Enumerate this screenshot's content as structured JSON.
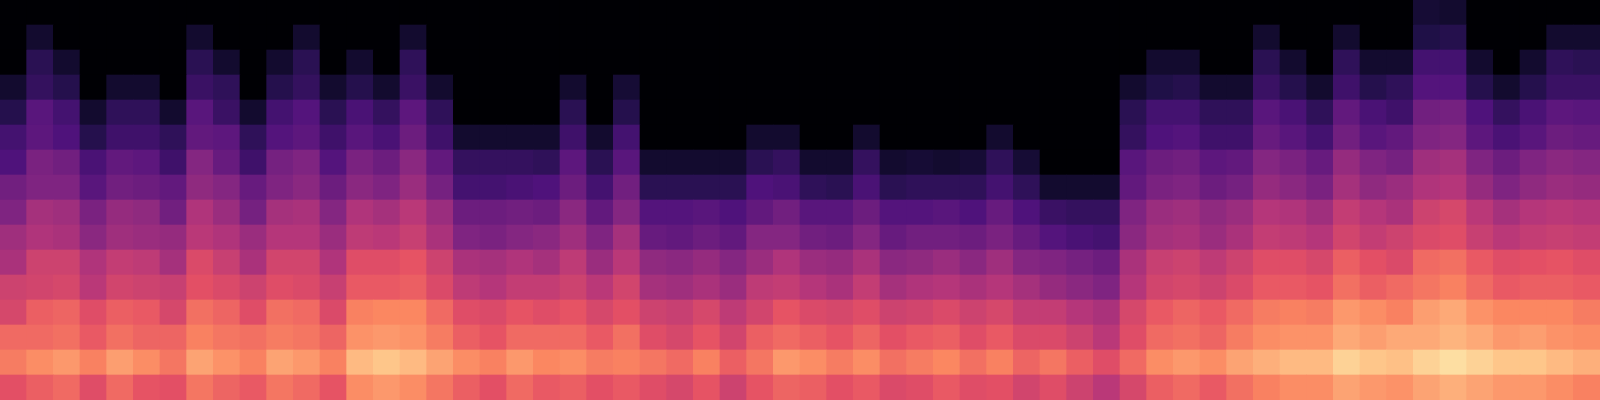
{
  "chart_data": {
    "type": "heatmap",
    "tick_labels": false,
    "grid": false,
    "color_range": [
      -80,
      0
    ],
    "cells": [
      [
        -30,
        -22,
        -25,
        -33,
        -35,
        -42,
        -44,
        -50,
        -53,
        -60,
        -62,
        -68,
        -73,
        -80,
        -80,
        -80
      ],
      [
        -27,
        -19,
        -25,
        -27,
        -34,
        -35,
        -41,
        -43,
        -50,
        -51,
        -57,
        -58,
        -65,
        -67,
        -73,
        -80
      ],
      [
        -25,
        -17,
        -24,
        -26,
        -33,
        -35,
        -42,
        -44,
        -50,
        -53,
        -60,
        -62,
        -68,
        -73,
        -80,
        -80
      ],
      [
        -31,
        -21,
        -28,
        -31,
        -39,
        -41,
        -48,
        -51,
        -58,
        -61,
        -68,
        -73,
        -80,
        -80,
        -80,
        -80
      ],
      [
        -25,
        -16,
        -24,
        -27,
        -34,
        -37,
        -44,
        -46,
        -53,
        -56,
        -63,
        -66,
        -73,
        -80,
        -80,
        -80
      ],
      [
        -29,
        -19,
        -26,
        -28,
        -35,
        -38,
        -45,
        -47,
        -54,
        -57,
        -63,
        -66,
        -73,
        -80,
        -80,
        -80
      ],
      [
        -30,
        -23,
        -26,
        -33,
        -36,
        -43,
        -46,
        -53,
        -56,
        -63,
        -66,
        -73,
        -80,
        -80,
        -80,
        -80
      ],
      [
        -23,
        -15,
        -21,
        -24,
        -30,
        -32,
        -39,
        -41,
        -47,
        -49,
        -56,
        -58,
        -64,
        -67,
        -73,
        -80
      ],
      [
        -26,
        -18,
        -23,
        -26,
        -32,
        -36,
        -41,
        -45,
        -49,
        -55,
        -57,
        -64,
        -66,
        -73,
        -80,
        -80
      ],
      [
        -28,
        -21,
        -24,
        -31,
        -35,
        -42,
        -45,
        -52,
        -55,
        -63,
        -66,
        -73,
        -80,
        -80,
        -80,
        -80
      ],
      [
        -23,
        -15,
        -22,
        -24,
        -31,
        -34,
        -40,
        -43,
        -50,
        -52,
        -59,
        -62,
        -68,
        -73,
        -80,
        -80
      ],
      [
        -25,
        -17,
        -23,
        -25,
        -32,
        -34,
        -40,
        -42,
        -48,
        -50,
        -57,
        -59,
        -65,
        -67,
        -73,
        -80
      ],
      [
        -29,
        -21,
        -26,
        -32,
        -36,
        -41,
        -45,
        -49,
        -54,
        -59,
        -63,
        -67,
        -73,
        -80,
        -80,
        -80
      ],
      [
        -19,
        -11,
        -18,
        -21,
        -28,
        -31,
        -38,
        -41,
        -48,
        -51,
        -58,
        -61,
        -68,
        -73,
        -80,
        -80
      ],
      [
        -17,
        -9,
        -17,
        -20,
        -28,
        -31,
        -39,
        -43,
        -50,
        -54,
        -61,
        -65,
        -73,
        -80,
        -80,
        -80
      ],
      [
        -19,
        -11,
        -18,
        -20,
        -27,
        -29,
        -36,
        -39,
        -45,
        -48,
        -54,
        -57,
        -64,
        -66,
        -73,
        -80
      ],
      [
        -23,
        -15,
        -22,
        -25,
        -32,
        -35,
        -42,
        -45,
        -52,
        -56,
        -63,
        -66,
        -73,
        -80,
        -80,
        -80
      ],
      [
        -27,
        -19,
        -27,
        -31,
        -38,
        -42,
        -50,
        -54,
        -62,
        -65,
        -73,
        -80,
        -80,
        -80,
        -80,
        -80
      ],
      [
        -30,
        -21,
        -29,
        -32,
        -40,
        -43,
        -51,
        -54,
        -62,
        -65,
        -73,
        -80,
        -80,
        -80,
        -80,
        -80
      ],
      [
        -25,
        -17,
        -25,
        -29,
        -37,
        -41,
        -49,
        -53,
        -61,
        -65,
        -73,
        -80,
        -80,
        -80,
        -80,
        -80
      ],
      [
        -28,
        -20,
        -25,
        -31,
        -37,
        -43,
        -48,
        -54,
        -60,
        -66,
        -73,
        -80,
        -80,
        -80,
        -80,
        -80
      ],
      [
        -27,
        -19,
        -25,
        -29,
        -35,
        -38,
        -44,
        -48,
        -54,
        -57,
        -63,
        -67,
        -73,
        -80,
        -80,
        -80
      ],
      [
        -30,
        -22,
        -28,
        -33,
        -39,
        -45,
        -50,
        -56,
        -62,
        -67,
        -73,
        -80,
        -80,
        -80,
        -80,
        -80
      ],
      [
        -28,
        -21,
        -24,
        -30,
        -34,
        -39,
        -43,
        -49,
        -53,
        -58,
        -62,
        -68,
        -72,
        -80,
        -80,
        -80
      ],
      [
        -31,
        -23,
        -31,
        -35,
        -43,
        -47,
        -55,
        -59,
        -67,
        -73,
        -80,
        -80,
        -80,
        -80,
        -80,
        -80
      ],
      [
        -33,
        -25,
        -33,
        -36,
        -44,
        -48,
        -56,
        -59,
        -67,
        -73,
        -80,
        -80,
        -80,
        -80,
        -80,
        -80
      ],
      [
        -29,
        -21,
        -29,
        -33,
        -42,
        -46,
        -54,
        -58,
        -67,
        -73,
        -80,
        -80,
        -80,
        -80,
        -80,
        -80
      ],
      [
        -35,
        -27,
        -34,
        -38,
        -45,
        -49,
        -56,
        -60,
        -67,
        -73,
        -80,
        -80,
        -80,
        -80,
        -80,
        -80
      ],
      [
        -29,
        -23,
        -27,
        -34,
        -38,
        -45,
        -49,
        -56,
        -60,
        -67,
        -73,
        -80,
        -80,
        -80,
        -80,
        -80
      ],
      [
        -26,
        -17,
        -25,
        -29,
        -37,
        -41,
        -49,
        -53,
        -61,
        -65,
        -73,
        -80,
        -80,
        -80,
        -80,
        -80
      ],
      [
        -27,
        -19,
        -27,
        -32,
        -40,
        -45,
        -53,
        -58,
        -66,
        -73,
        -80,
        -80,
        -80,
        -80,
        -80,
        -80
      ],
      [
        -30,
        -22,
        -29,
        -33,
        -42,
        -46,
        -54,
        -58,
        -67,
        -73,
        -80,
        -80,
        -80,
        -80,
        -80,
        -80
      ],
      [
        -28,
        -19,
        -26,
        -31,
        -37,
        -42,
        -49,
        -54,
        -61,
        -65,
        -73,
        -80,
        -80,
        -80,
        -80,
        -80
      ],
      [
        -32,
        -24,
        -30,
        -35,
        -43,
        -48,
        -55,
        -59,
        -67,
        -73,
        -80,
        -80,
        -80,
        -80,
        -80,
        -80
      ],
      [
        -31,
        -22,
        -28,
        -34,
        -41,
        -47,
        -53,
        -59,
        -66,
        -72,
        -80,
        -80,
        -80,
        -80,
        -80,
        -80
      ],
      [
        -28,
        -20,
        -27,
        -32,
        -40,
        -45,
        -53,
        -58,
        -66,
        -73,
        -80,
        -80,
        -80,
        -80,
        -80,
        -80
      ],
      [
        -31,
        -24,
        -31,
        -35,
        -42,
        -48,
        -54,
        -60,
        -66,
        -72,
        -80,
        -80,
        -80,
        -80,
        -80,
        -80
      ],
      [
        -30,
        -21,
        -28,
        -33,
        -40,
        -44,
        -51,
        -55,
        -62,
        -66,
        -73,
        -80,
        -80,
        -80,
        -80,
        -80
      ],
      [
        -34,
        -26,
        -32,
        -37,
        -43,
        -49,
        -55,
        -60,
        -66,
        -72,
        -80,
        -80,
        -80,
        -80,
        -80,
        -80
      ],
      [
        -31,
        -23,
        -32,
        -37,
        -46,
        -50,
        -59,
        -64,
        -73,
        -80,
        -80,
        -80,
        -80,
        -80,
        -80,
        -80
      ],
      [
        -35,
        -27,
        -35,
        -40,
        -48,
        -52,
        -61,
        -65,
        -73,
        -80,
        -80,
        -80,
        -80,
        -80,
        -80,
        -80
      ],
      [
        -39,
        -31,
        -39,
        -42,
        -50,
        -54,
        -62,
        -65,
        -73,
        -80,
        -80,
        -80,
        -80,
        -80,
        -80,
        -80
      ],
      [
        -33,
        -25,
        -31,
        -33,
        -40,
        -42,
        -48,
        -50,
        -56,
        -58,
        -65,
        -67,
        -73,
        -80,
        -80,
        -80
      ],
      [
        -27,
        -19,
        -25,
        -28,
        -34,
        -36,
        -43,
        -45,
        -51,
        -54,
        -60,
        -62,
        -69,
        -73,
        -80,
        -80
      ],
      [
        -25,
        -17,
        -24,
        -26,
        -33,
        -35,
        -42,
        -44,
        -50,
        -53,
        -59,
        -62,
        -68,
        -73,
        -80,
        -80
      ],
      [
        -28,
        -19,
        -26,
        -28,
        -35,
        -38,
        -45,
        -47,
        -54,
        -57,
        -63,
        -66,
        -73,
        -80,
        -80,
        -80
      ],
      [
        -24,
        -15,
        -22,
        -25,
        -32,
        -35,
        -42,
        -45,
        -52,
        -56,
        -63,
        -66,
        -73,
        -80,
        -80,
        -80
      ],
      [
        -21,
        -13,
        -19,
        -22,
        -28,
        -31,
        -37,
        -40,
        -46,
        -49,
        -55,
        -58,
        -64,
        -67,
        -73,
        -80
      ],
      [
        -19,
        -11,
        -18,
        -21,
        -28,
        -31,
        -38,
        -41,
        -48,
        -51,
        -58,
        -61,
        -68,
        -73,
        -80,
        -80
      ],
      [
        -19,
        -11,
        -18,
        -22,
        -29,
        -33,
        -40,
        -44,
        -51,
        -55,
        -62,
        -66,
        -73,
        -80,
        -80,
        -80
      ],
      [
        -15,
        -7,
        -14,
        -17,
        -24,
        -27,
        -34,
        -37,
        -43,
        -46,
        -53,
        -56,
        -63,
        -66,
        -73,
        -80
      ],
      [
        -17,
        -9,
        -16,
        -19,
        -27,
        -30,
        -37,
        -40,
        -47,
        -50,
        -58,
        -61,
        -68,
        -73,
        -80,
        -80
      ],
      [
        -18,
        -10,
        -14,
        -21,
        -25,
        -32,
        -35,
        -42,
        -45,
        -52,
        -56,
        -63,
        -66,
        -73,
        -80,
        -80
      ],
      [
        -15,
        -7,
        -14,
        -16,
        -23,
        -25,
        -32,
        -35,
        -41,
        -44,
        -50,
        -53,
        -59,
        -62,
        -69,
        -72
      ],
      [
        -13,
        -5,
        -12,
        -14,
        -21,
        -24,
        -31,
        -33,
        -40,
        -43,
        -49,
        -52,
        -59,
        -62,
        -68,
        -73
      ],
      [
        -15,
        -7,
        -14,
        -18,
        -25,
        -28,
        -36,
        -39,
        -46,
        -50,
        -57,
        -60,
        -68,
        -73,
        -80,
        -80
      ],
      [
        -17,
        -9,
        -17,
        -20,
        -28,
        -31,
        -39,
        -43,
        -50,
        -54,
        -61,
        -65,
        -73,
        -80,
        -80,
        -80
      ],
      [
        -17,
        -9,
        -16,
        -20,
        -27,
        -30,
        -37,
        -40,
        -47,
        -50,
        -58,
        -61,
        -68,
        -73,
        -80,
        -80
      ],
      [
        -19,
        -11,
        -18,
        -20,
        -27,
        -29,
        -36,
        -39,
        -45,
        -48,
        -54,
        -57,
        -64,
        -66,
        -73,
        -80
      ],
      [
        -21,
        -13,
        -19,
        -22,
        -28,
        -31,
        -37,
        -40,
        -46,
        -49,
        -55,
        -58,
        -64,
        -67,
        -73,
        -80
      ]
    ]
  }
}
